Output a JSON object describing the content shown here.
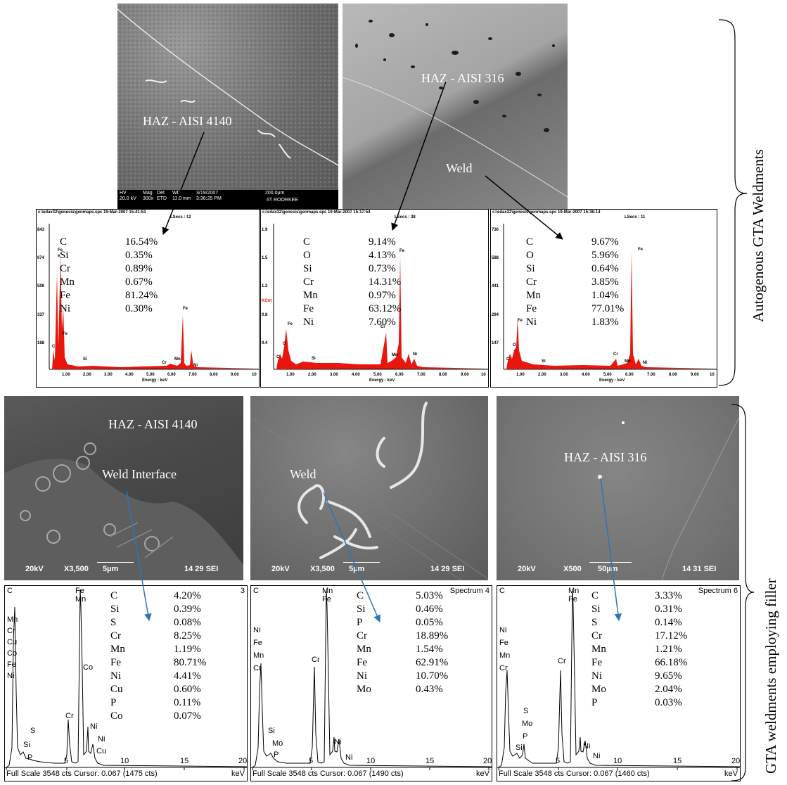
{
  "side_labels": {
    "top": "Autogenous GTA Weldments",
    "bottom": "GTA weldments employing filler"
  },
  "micrographs_top": [
    {
      "label": "HAZ - AISI 4140",
      "databar": {
        "col1": [
          "HV",
          "20.0 kV"
        ],
        "col2": [
          "Mag",
          "300x"
        ],
        "col3": [
          "Det",
          "ETD"
        ],
        "col4": [
          "WD",
          "11.0 mm"
        ],
        "col5": [
          "3/19/2007",
          "3:36:25 PM"
        ],
        "scale": "200.0µm",
        "lab": "IIT ROORKEE"
      }
    },
    {
      "label1": "HAZ - AISI 316",
      "label2": "Weld"
    }
  ],
  "spectra_top": [
    {
      "header": "c:\\edax32\\genesis\\genmaps.spc  19-Mar-2007 15:41:53",
      "lsecs": "LSecs : 12",
      "yticks": [
        "843",
        "674",
        "506",
        "337",
        "168"
      ],
      "elements": [
        "C",
        "Si",
        "Cr",
        "Mn",
        "Fe",
        "Ni"
      ],
      "values": [
        "16.54%",
        "0.35%",
        "0.89%",
        "0.67%",
        "81.24%",
        "0.30%"
      ],
      "peaks": [
        "Fe",
        "e",
        "C",
        "Fe",
        "Si",
        "Cr",
        "Mn",
        "Fe",
        "Ni"
      ]
    },
    {
      "header": "c:\\edax32\\genesis\\genmaps.spc  19-Mar-2007 15:17:54",
      "lsecs": "LSecs : 38",
      "yticks": [
        "1.9",
        "1.5",
        "1.2",
        "0.8",
        "0.4"
      ],
      "ylabel": "KCnt",
      "elements": [
        "C",
        "O",
        "Si",
        "Cr",
        "Mn",
        "Fe",
        "Ni"
      ],
      "values": [
        "9.14%",
        "4.13%",
        "0.73%",
        "14.31%",
        "0.97%",
        "63.12%",
        "7.60%"
      ],
      "peaks": [
        "Fe",
        "C",
        "O",
        "Si",
        "Cr",
        "Mn",
        "Fe",
        "Ni"
      ]
    },
    {
      "header": "c:\\edax32\\genesis\\genmaps.spc  19-Mar-2007 15:36:14",
      "lsecs": "LSecs : 11",
      "yticks": [
        "736",
        "588",
        "441",
        "294",
        "147"
      ],
      "elements": [
        "C",
        "O",
        "Si",
        "Cr",
        "Mn",
        "Fe",
        "Ni"
      ],
      "values": [
        "9.67%",
        "5.96%",
        "0.64%",
        "3.85%",
        "1.04%",
        "77.01%",
        "1.83%"
      ],
      "peaks": [
        "Fe",
        "C",
        "O",
        "Si",
        "Cr",
        "Mn",
        "Fe",
        "Ni"
      ]
    }
  ],
  "spectra_top_xticks": [
    "1.00",
    "2.00",
    "3.00",
    "4.00",
    "5.00",
    "6.00",
    "7.00",
    "8.00",
    "9.00",
    "10"
  ],
  "spectra_top_xlabel": "Energy - keV",
  "micrographs_bottom": [
    {
      "label1": "HAZ - AISI 4140",
      "label2": "Weld Interface",
      "bar": [
        "20kV",
        "X3,500",
        "5µm",
        "14 29 SEI"
      ]
    },
    {
      "label1": "Weld",
      "bar": [
        "20kV",
        "X3,500",
        "5µm",
        "14 29 SEI"
      ]
    },
    {
      "label1": "HAZ - AISI 316",
      "bar": [
        "20kV",
        "X500",
        "50µm",
        "14 31 SEI"
      ]
    }
  ],
  "spectra_bottom": [
    {
      "title": "3",
      "left_labels": [
        "C",
        "Mn",
        "Cr",
        "Cu",
        "Co",
        "Fe",
        "Ni"
      ],
      "peaks": [
        "Fe",
        "Mn",
        "S",
        "Si",
        "P",
        "Cr",
        "Co",
        "Ni",
        "Ni",
        "Cu"
      ],
      "elements": [
        "C",
        "Si",
        "S",
        "Cr",
        "Mn",
        "Fe",
        "Ni",
        "Cu",
        "P",
        "Co"
      ],
      "values": [
        "4.20%",
        "0.39%",
        "0.08%",
        "8.25%",
        "1.19%",
        "80.71%",
        "4.41%",
        "0.60%",
        "0.11%",
        "0.07%"
      ],
      "footer": "Full Scale 3548 cts Cursor: 0.067  (1475 cts)"
    },
    {
      "title": "Spectrum 4",
      "left_labels": [
        "C",
        "Ni",
        "Fe",
        "Mn",
        "Cr"
      ],
      "peaks": [
        "Mn",
        "Fe",
        "Cr",
        "Si",
        "Mo",
        "P",
        "Ni",
        "Ni"
      ],
      "elements": [
        "C",
        "Si",
        "P",
        "Cr",
        "Mn",
        "Fe",
        "Ni",
        "Mo"
      ],
      "values": [
        "5.03%",
        "0.46%",
        "0.05%",
        "18.89%",
        "1.54%",
        "62.91%",
        "10.70%",
        "0.43%"
      ],
      "footer": "Full Scale 3548 cts Cursor: 0.067  (1490 cts)"
    },
    {
      "title": "Spectrum 6",
      "left_labels": [
        "C",
        "Ni",
        "Fe",
        "Mn",
        "Cr"
      ],
      "peaks": [
        "Mn",
        "Fe",
        "S",
        "Mo",
        "P",
        "Si",
        "Cr",
        "Ni",
        "Ni"
      ],
      "elements": [
        "C",
        "Si",
        "S",
        "Cr",
        "Mn",
        "Fe",
        "Ni",
        "Mo",
        "P"
      ],
      "values": [
        "3.33%",
        "0.31%",
        "0.14%",
        "17.12%",
        "1.21%",
        "66.18%",
        "9.65%",
        "2.04%",
        "0.03%"
      ],
      "footer": "Full Scale 3548 cts Cursor: 0.067  (1460 cts)"
    }
  ],
  "spectra_bottom_xticks": [
    "5",
    "10",
    "15",
    "20"
  ],
  "spectra_bottom_unit": "keV",
  "colors": {
    "spectrum_red": "#e8160c",
    "arrow_blue": "#2e75b6"
  }
}
